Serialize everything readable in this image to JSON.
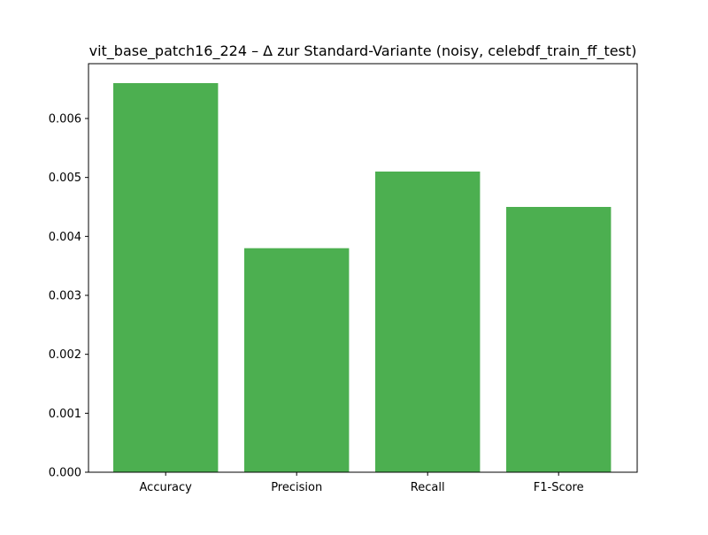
{
  "chart_data": {
    "type": "bar",
    "title": "vit_base_patch16_224 – Δ zur Standard-Variante (noisy, celebdf_train_ff_test)",
    "xlabel": "",
    "ylabel": "",
    "categories": [
      "Accuracy",
      "Precision",
      "Recall",
      "F1-Score"
    ],
    "values": [
      0.0066,
      0.0038,
      0.0051,
      0.0045
    ],
    "ylim": [
      0,
      0.00693
    ],
    "yticks": [
      "0.000",
      "0.001",
      "0.002",
      "0.003",
      "0.004",
      "0.005",
      "0.006"
    ],
    "ytick_values": [
      0,
      0.001,
      0.002,
      0.003,
      0.004,
      0.005,
      0.006
    ],
    "bar_color": "#4caf50",
    "grid": false,
    "legend": "none"
  }
}
